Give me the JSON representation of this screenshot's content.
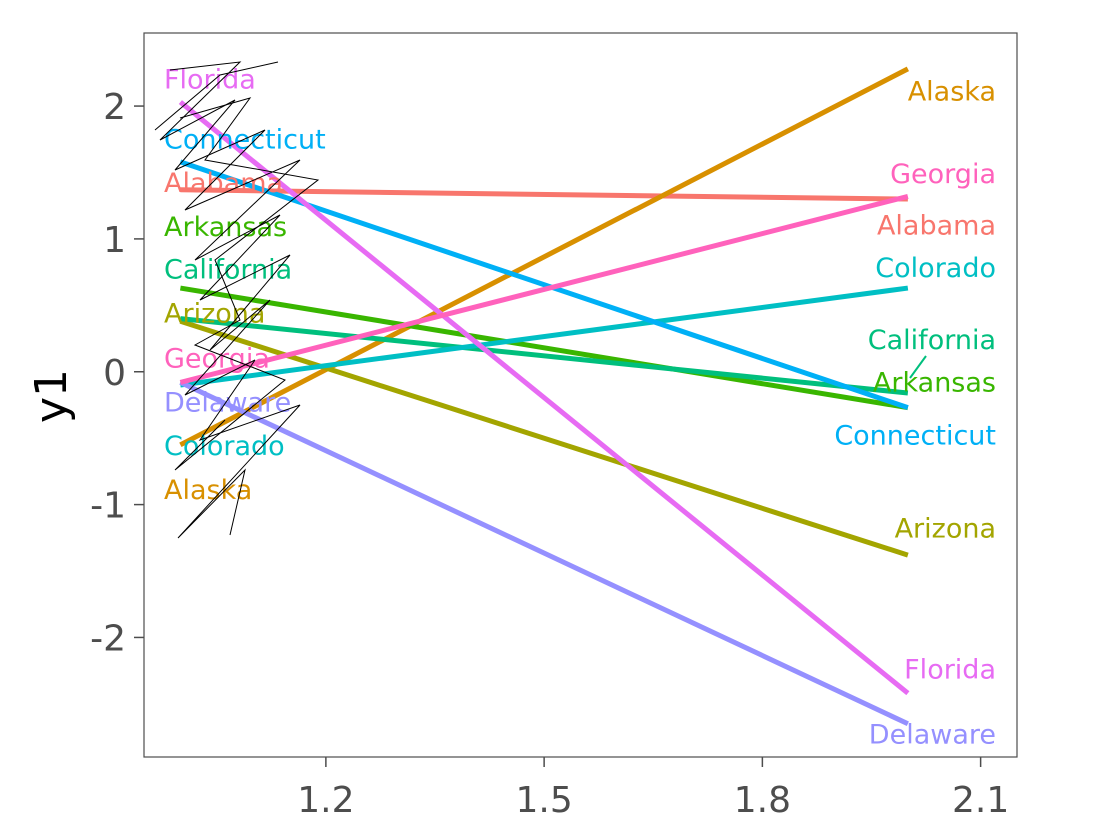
{
  "chart_data": {
    "type": "line",
    "title": "",
    "xlabel": "",
    "ylabel": "y1",
    "xlim": [
      0.95,
      2.15
    ],
    "ylim": [
      -2.9,
      2.55
    ],
    "x_ticks": [
      "1.2",
      "1.5",
      "1.8",
      "2.1"
    ],
    "y_ticks": [
      "2",
      "1",
      "0",
      "-1",
      "-2"
    ],
    "x": [
      1,
      2
    ],
    "series": [
      {
        "name": "Alabama",
        "color": "#F8766D",
        "values": [
          1.37,
          1.3
        ],
        "left_label": "Alabama",
        "right_label": "Alabama"
      },
      {
        "name": "Alaska",
        "color": "#D89000",
        "values": [
          -0.55,
          2.28
        ],
        "left_label": "Alaska",
        "right_label": "Alaska"
      },
      {
        "name": "Arizona",
        "color": "#A3A500",
        "values": [
          0.38,
          -1.38
        ],
        "left_label": "Arizona",
        "right_label": "Arizona"
      },
      {
        "name": "Arkansas",
        "color": "#39B600",
        "values": [
          0.63,
          -0.27
        ],
        "left_label": "Arkansas",
        "right_label": "Arkansas"
      },
      {
        "name": "California",
        "color": "#00BF7D",
        "values": [
          0.4,
          -0.16
        ],
        "left_label": "California",
        "right_label": "California"
      },
      {
        "name": "Colorado",
        "color": "#00BFC4",
        "values": [
          -0.1,
          0.63
        ],
        "left_label": "Colorado",
        "right_label": "Colorado"
      },
      {
        "name": "Connecticut",
        "color": "#00B0F6",
        "values": [
          1.58,
          -0.27
        ],
        "left_label": "Connecticut",
        "right_label": "Connecticut"
      },
      {
        "name": "Delaware",
        "color": "#9590FF",
        "values": [
          -0.08,
          -2.65
        ],
        "left_label": "Delaware",
        "right_label": "Delaware"
      },
      {
        "name": "Florida",
        "color": "#E76BF3",
        "values": [
          2.03,
          -2.42
        ],
        "left_label": "Florida",
        "right_label": "Florida"
      },
      {
        "name": "Georgia",
        "color": "#FF62BC",
        "values": [
          -0.08,
          1.32
        ],
        "left_label": "Georgia",
        "right_label": "Georgia"
      }
    ],
    "left_label_order": [
      "Florida",
      "Connecticut",
      "Alabama",
      "Arkansas",
      "California",
      "Arizona",
      "Georgia",
      "Delaware",
      "Colorado",
      "Alaska"
    ],
    "left_label_y": [
      2.2,
      1.75,
      1.42,
      1.09,
      0.77,
      0.44,
      0.1,
      -0.23,
      -0.56,
      -0.89
    ],
    "right_label_order": [
      "Alaska",
      "Georgia",
      "Alabama",
      "Colorado",
      "California",
      "Arkansas",
      "Connecticut",
      "Arizona",
      "Florida",
      "Delaware"
    ],
    "right_label_y": [
      2.11,
      1.49,
      1.1,
      0.78,
      0.24,
      -0.08,
      -0.48,
      -1.18,
      -2.24,
      -2.73
    ],
    "grid": false,
    "legend": "none"
  }
}
